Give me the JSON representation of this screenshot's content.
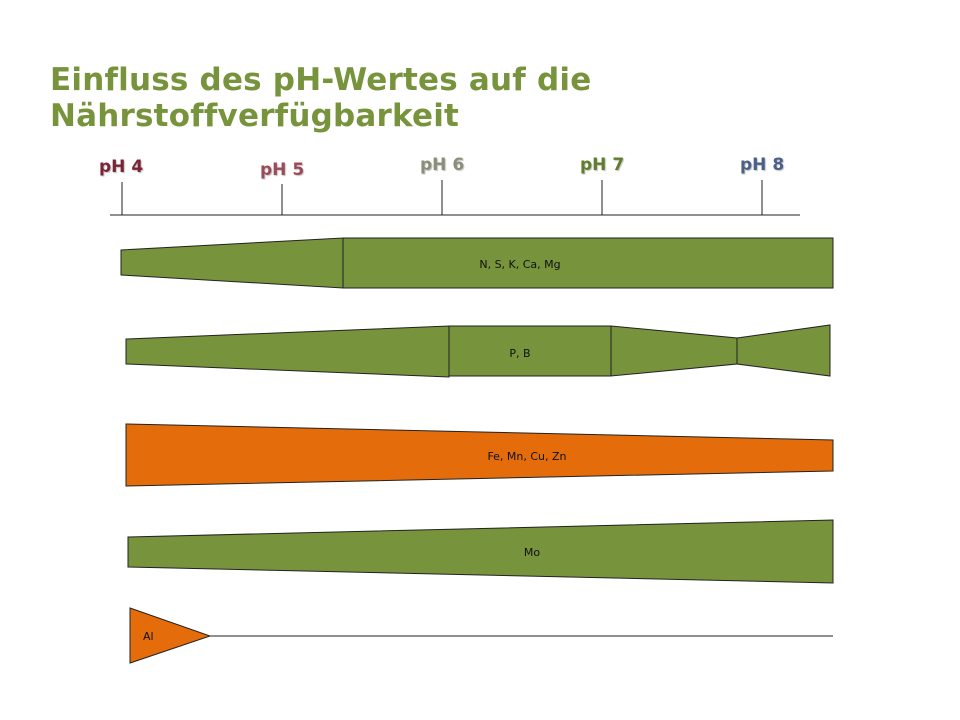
{
  "title": "Einfluss des pH-Wertes auf die Nährstoffverfügbarkeit",
  "ph_scale": [
    {
      "label": "pH 4",
      "color": "#7b2436"
    },
    {
      "label": "pH 5",
      "color": "#9c4a58"
    },
    {
      "label": "pH 6",
      "color": "#8a8f7a"
    },
    {
      "label": "pH 7",
      "color": "#5f7d2b"
    },
    {
      "label": "pH 8",
      "color": "#4a5f8a"
    }
  ],
  "colors": {
    "green": "#77933c",
    "orange": "#e46c0a",
    "outline": "#222222",
    "title": "#77933c"
  },
  "bands": [
    {
      "label": "N, S, K, Ca, Mg",
      "color": "green"
    },
    {
      "label": "P, B",
      "color": "green"
    },
    {
      "label": "Fe, Mn, Cu, Zn",
      "color": "orange"
    },
    {
      "label": "Mo",
      "color": "green"
    },
    {
      "label": "Al",
      "color": "orange"
    }
  ]
}
